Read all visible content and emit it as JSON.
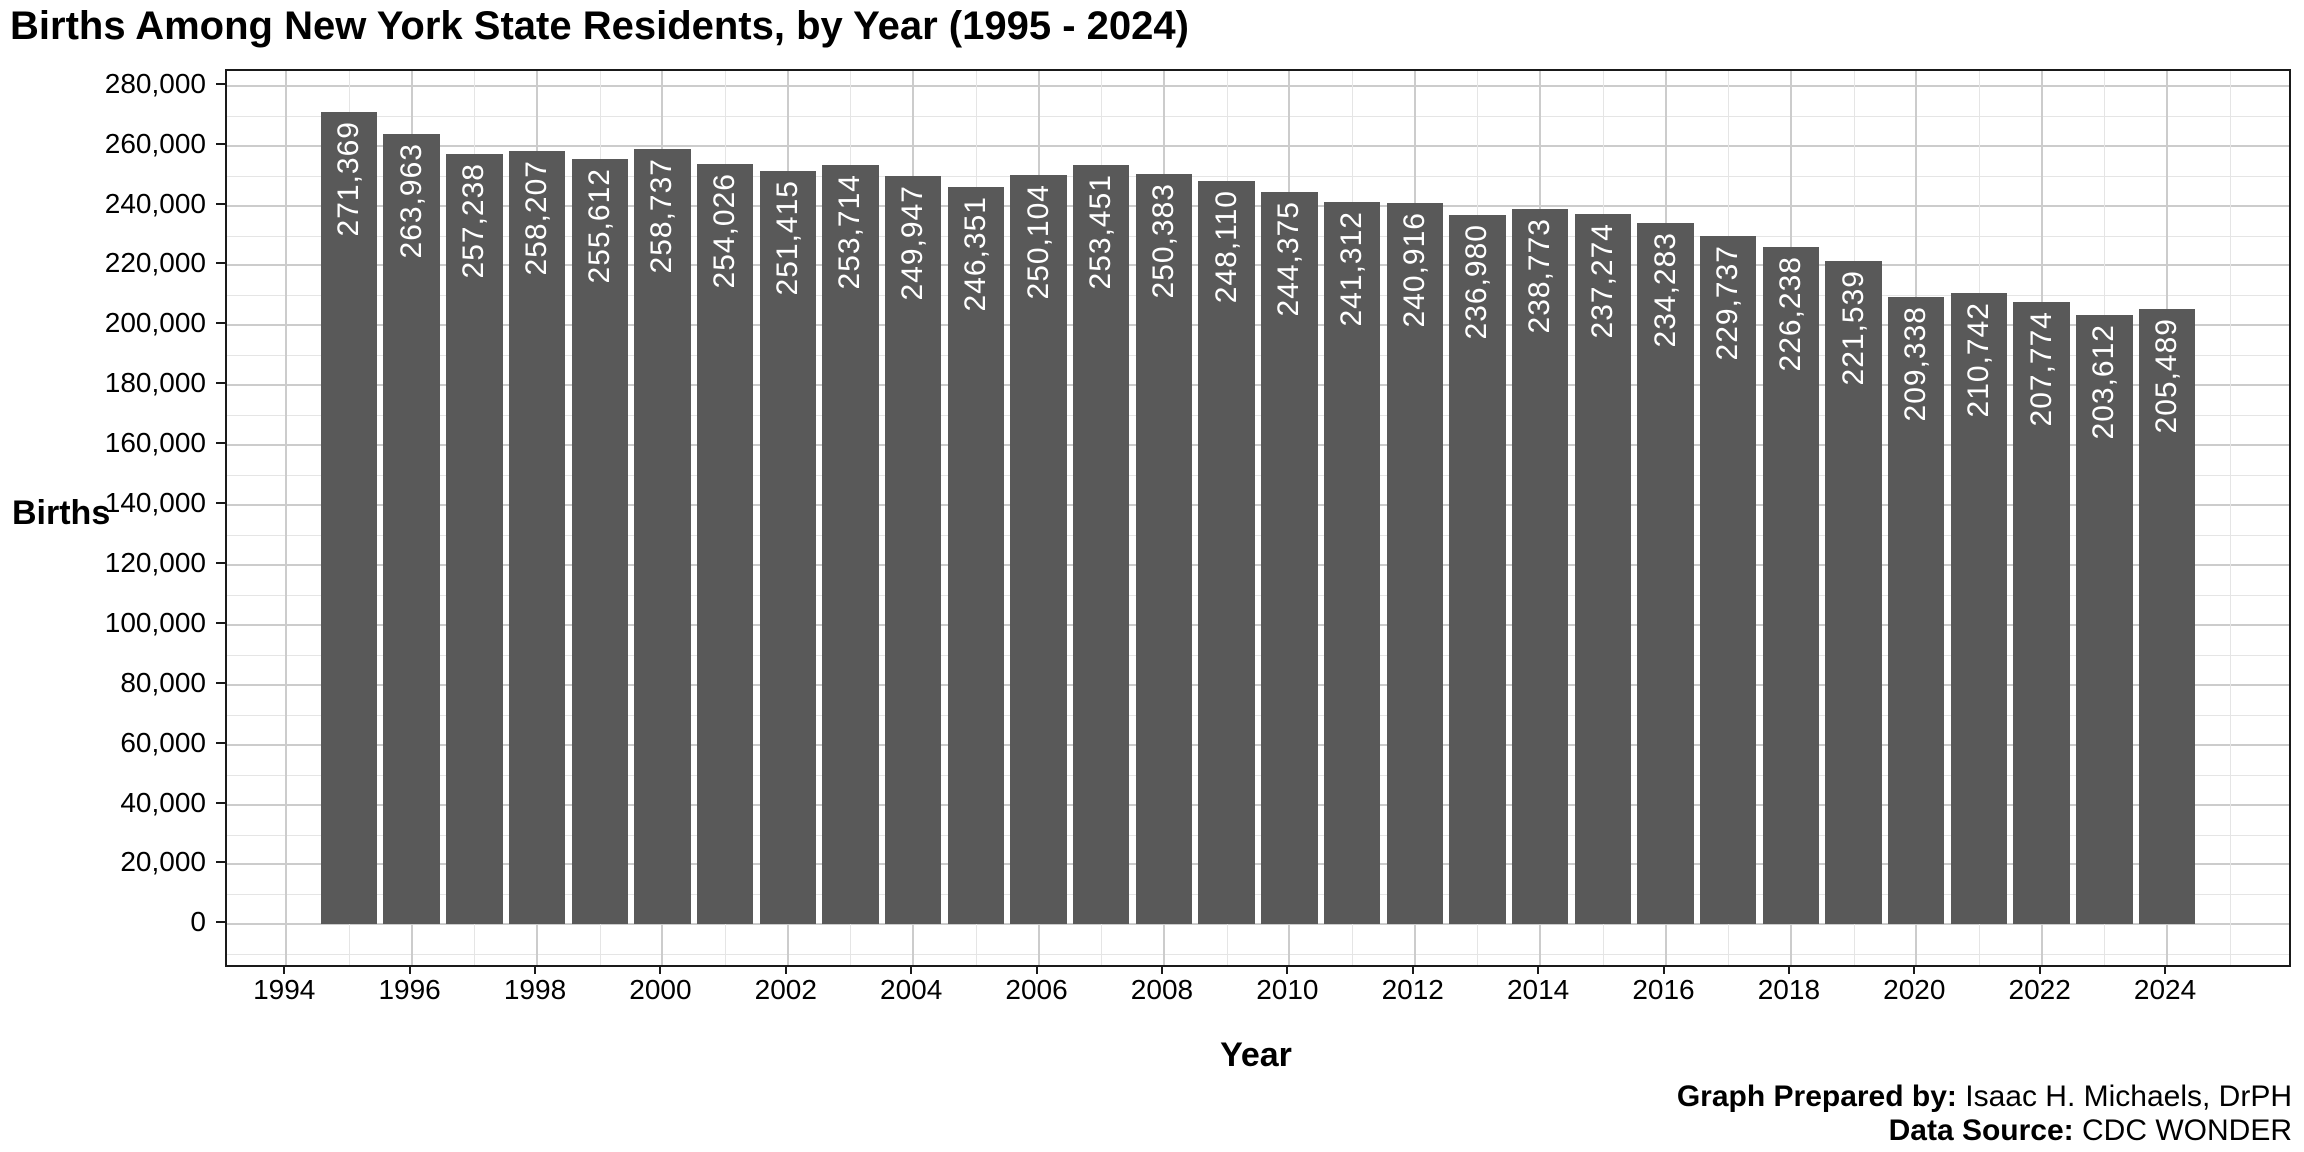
{
  "title": "Births Among New York State Residents, by Year (1995 - 2024)",
  "caption": {
    "prepared_by_label": "Graph Prepared by:",
    "prepared_by_value": " Isaac H. Michaels, DrPH",
    "source_label": "Data Source:",
    "source_value": " CDC WONDER"
  },
  "chart_data": {
    "type": "bar",
    "title": "Births Among New York State Residents, by Year (1995 - 2024)",
    "xlabel": "Year",
    "ylabel": "Births",
    "x": [
      1995,
      1996,
      1997,
      1998,
      1999,
      2000,
      2001,
      2002,
      2003,
      2004,
      2005,
      2006,
      2007,
      2008,
      2009,
      2010,
      2011,
      2012,
      2013,
      2014,
      2015,
      2016,
      2017,
      2018,
      2019,
      2020,
      2021,
      2022,
      2023,
      2024
    ],
    "values": [
      271369,
      263963,
      257238,
      258207,
      255612,
      258737,
      254026,
      251415,
      253714,
      249947,
      246351,
      250104,
      253451,
      250383,
      248110,
      244375,
      241312,
      240916,
      236980,
      238773,
      237274,
      234283,
      229737,
      226238,
      221539,
      209338,
      210742,
      207774,
      203612,
      205489
    ],
    "ylim": [
      0,
      280000
    ],
    "y_tick_step": 20000,
    "x_ticks": [
      1994,
      1996,
      1998,
      2000,
      2002,
      2004,
      2006,
      2008,
      2010,
      2012,
      2014,
      2016,
      2018,
      2020,
      2022,
      2024
    ],
    "bar_color": "#595959",
    "bar_label_color": "#ffffff",
    "grid": {
      "major_color": "#cccccc",
      "minor_color": "#e5e5e5",
      "minor_on": true
    },
    "legend_position": "none",
    "bar_width_fraction": 0.9
  }
}
